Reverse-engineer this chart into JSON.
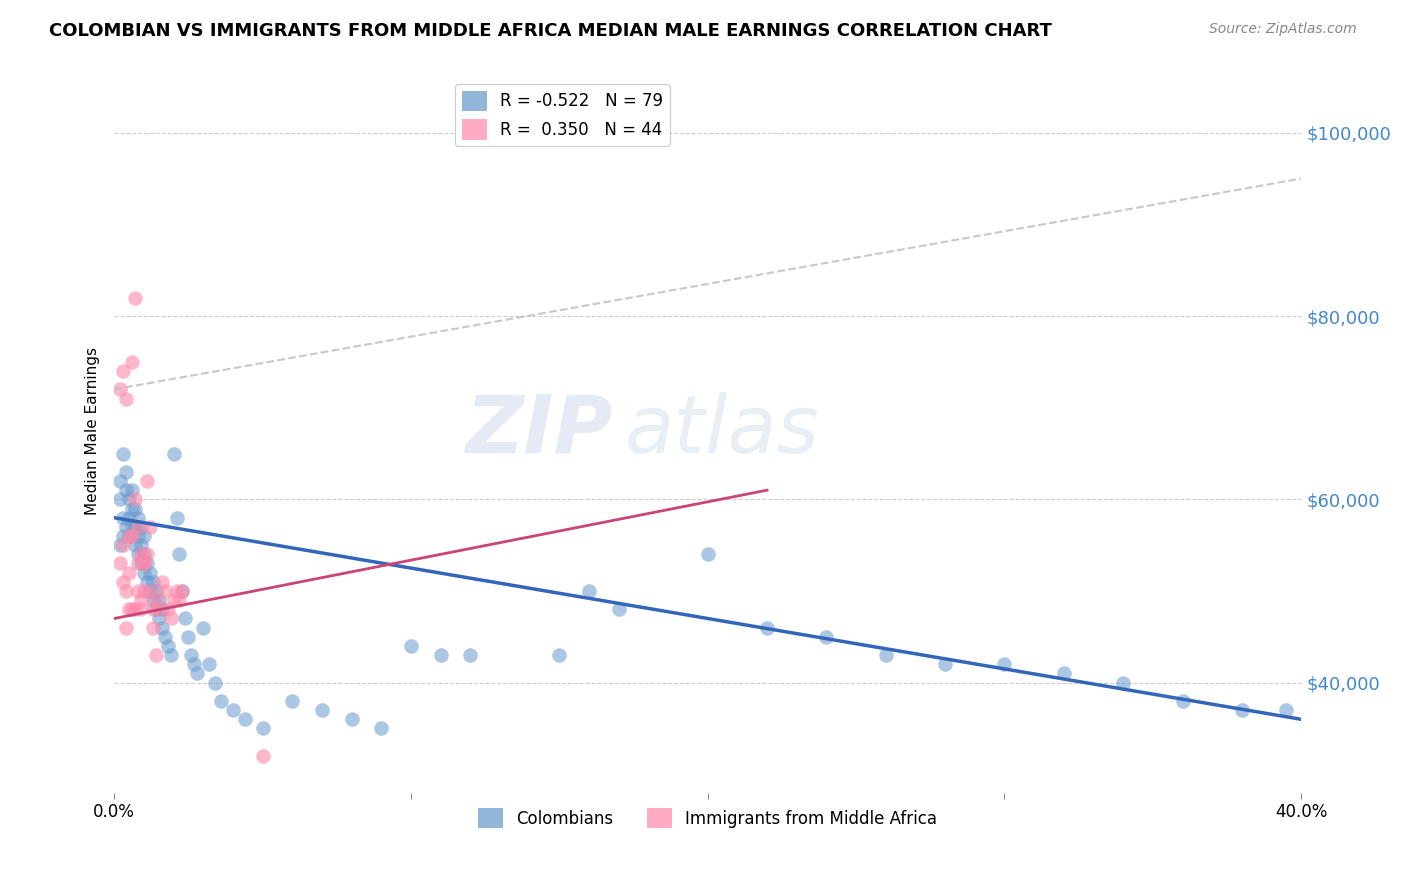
{
  "title": "COLOMBIAN VS IMMIGRANTS FROM MIDDLE AFRICA MEDIAN MALE EARNINGS CORRELATION CHART",
  "source": "Source: ZipAtlas.com",
  "ylabel": "Median Male Earnings",
  "yticks": [
    40000,
    60000,
    80000,
    100000
  ],
  "ytick_labels": [
    "$40,000",
    "$60,000",
    "$80,000",
    "$100,000"
  ],
  "blue_R": "-0.522",
  "blue_N": "79",
  "pink_R": "0.350",
  "pink_N": "44",
  "blue_color": "#6699CC",
  "pink_color": "#FF88AA",
  "blue_line_color": "#3366BB",
  "pink_line_color": "#CC4477",
  "upper_dashed_color": "#BBBBBB",
  "watermark_zip": "ZIP",
  "watermark_atlas": "atlas",
  "blue_scatter_x": [
    0.002,
    0.002,
    0.003,
    0.003,
    0.004,
    0.004,
    0.004,
    0.005,
    0.005,
    0.005,
    0.006,
    0.006,
    0.006,
    0.007,
    0.007,
    0.007,
    0.008,
    0.008,
    0.008,
    0.009,
    0.009,
    0.009,
    0.01,
    0.01,
    0.01,
    0.011,
    0.011,
    0.012,
    0.012,
    0.013,
    0.013,
    0.014,
    0.014,
    0.015,
    0.015,
    0.016,
    0.016,
    0.017,
    0.018,
    0.019,
    0.02,
    0.021,
    0.022,
    0.023,
    0.024,
    0.025,
    0.026,
    0.027,
    0.028,
    0.03,
    0.032,
    0.034,
    0.036,
    0.04,
    0.044,
    0.05,
    0.06,
    0.07,
    0.08,
    0.09,
    0.1,
    0.11,
    0.12,
    0.15,
    0.16,
    0.17,
    0.2,
    0.22,
    0.24,
    0.26,
    0.28,
    0.3,
    0.32,
    0.34,
    0.36,
    0.38,
    0.395,
    0.002,
    0.003
  ],
  "blue_scatter_y": [
    62000,
    60000,
    65000,
    58000,
    61000,
    63000,
    57000,
    60000,
    58000,
    56000,
    59000,
    57000,
    61000,
    55000,
    57000,
    59000,
    54000,
    56000,
    58000,
    53000,
    55000,
    57000,
    52000,
    54000,
    56000,
    51000,
    53000,
    50000,
    52000,
    49000,
    51000,
    48000,
    50000,
    47000,
    49000,
    46000,
    48000,
    45000,
    44000,
    43000,
    65000,
    58000,
    54000,
    50000,
    47000,
    45000,
    43000,
    42000,
    41000,
    46000,
    42000,
    40000,
    38000,
    37000,
    36000,
    35000,
    38000,
    37000,
    36000,
    35000,
    44000,
    43000,
    43000,
    43000,
    50000,
    48000,
    54000,
    46000,
    45000,
    43000,
    42000,
    42000,
    41000,
    40000,
    38000,
    37000,
    37000,
    55000,
    56000
  ],
  "pink_scatter_x": [
    0.002,
    0.003,
    0.003,
    0.004,
    0.004,
    0.005,
    0.005,
    0.006,
    0.006,
    0.007,
    0.007,
    0.008,
    0.008,
    0.009,
    0.009,
    0.01,
    0.01,
    0.011,
    0.012,
    0.013,
    0.014,
    0.015,
    0.016,
    0.017,
    0.018,
    0.019,
    0.02,
    0.021,
    0.022,
    0.023,
    0.006,
    0.007,
    0.008,
    0.009,
    0.01,
    0.011,
    0.012,
    0.014,
    0.05,
    0.002,
    0.003,
    0.004,
    0.005,
    0.013
  ],
  "pink_scatter_y": [
    53000,
    51000,
    74000,
    50000,
    71000,
    52000,
    56000,
    48000,
    56000,
    48000,
    60000,
    50000,
    53000,
    49000,
    48000,
    50000,
    53000,
    54000,
    50000,
    48000,
    49000,
    48000,
    51000,
    50000,
    48000,
    47000,
    49000,
    50000,
    49000,
    50000,
    75000,
    82000,
    57000,
    54000,
    53000,
    62000,
    57000,
    43000,
    32000,
    72000,
    55000,
    46000,
    48000,
    46000
  ],
  "blue_trend_x": [
    0.0,
    0.4
  ],
  "blue_trend_y": [
    58000,
    36000
  ],
  "pink_solid_trend_x": [
    0.0,
    0.22
  ],
  "pink_solid_trend_y": [
    47000,
    61000
  ],
  "upper_dash_trend_x": [
    0.0,
    0.4
  ],
  "upper_dash_trend_y": [
    72000,
    95000
  ],
  "xlim": [
    0.0,
    0.4
  ],
  "ylim": [
    28000,
    107000
  ],
  "title_fontsize": 13,
  "source_fontsize": 10,
  "axis_label_color": "#4488CC",
  "grid_color": "#CCCCCC"
}
